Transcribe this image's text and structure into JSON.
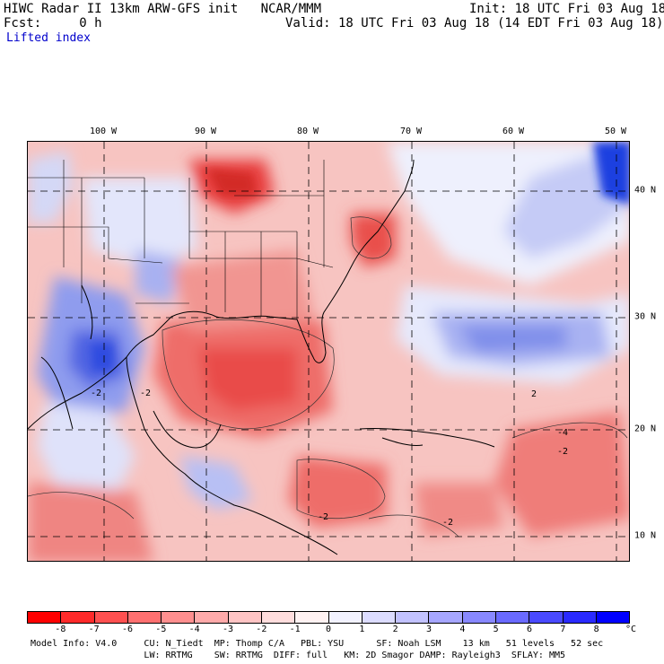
{
  "header": {
    "title": "HIWC Radar II 13km ARW-GFS init   NCAR/MMM",
    "fcst": "Fcst:     0 h",
    "field": "Lifted index",
    "init": "Init: 18 UTC Fri 03 Aug 18",
    "valid": "Valid: 18 UTC Fri 03 Aug 18 (14 EDT Fri 03 Aug 18)"
  },
  "map": {
    "longitude_labels": [
      "100 W",
      "90 W",
      "80 W",
      "70 W",
      "60 W",
      "50 W"
    ],
    "latitude_labels": [
      "40 N",
      "30 N",
      "20 N",
      "10 N"
    ],
    "contour_labels": [
      "-2",
      "-2",
      "2",
      "-2",
      "-2",
      "-2",
      "-4"
    ],
    "colors": {
      "strong_negative": "#e8302e",
      "weak_negative": "#f7b7b5",
      "weak_positive": "#d4d8f6",
      "strong_positive": "#1f3fe0",
      "background": "#ffffff"
    }
  },
  "colorbar": {
    "labels": [
      "-8",
      "-7",
      "-6",
      "-5",
      "-4",
      "-3",
      "-2",
      "-1",
      "0",
      "1",
      "2",
      "3",
      "4",
      "5",
      "6",
      "7",
      "8"
    ],
    "unit": "°C",
    "colors": [
      "#ff0000",
      "#ff2a2a",
      "#ff5050",
      "#ff7070",
      "#ff8f8f",
      "#ffaaaa",
      "#ffc4c4",
      "#ffdddd",
      "#fff2f2",
      "#f2f2ff",
      "#dcdcff",
      "#c2c2ff",
      "#a6a6ff",
      "#8888ff",
      "#6a6aff",
      "#4a4aff",
      "#2a2aff",
      "#0000ff"
    ]
  },
  "footer": {
    "line1": "Model Info: V4.0     CU: N_Tiedt  MP: Thomp C/A   PBL: YSU      SF: Noah LSM    13 km   51 levels   52 sec",
    "line2": "                     LW: RRTMG    SW: RRTMG  DIFF: full   KM: 2D Smagor DAMP: Rayleigh3  SFLAY: MM5"
  }
}
